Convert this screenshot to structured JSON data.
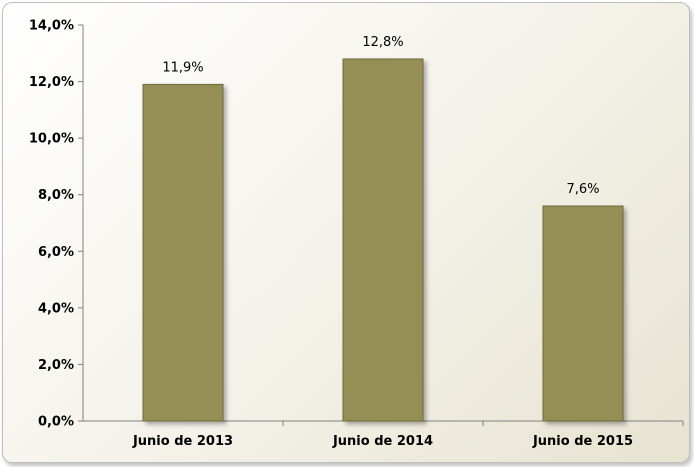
{
  "chart_data": {
    "type": "bar",
    "categories": [
      "Junio de 2013",
      "Junio de 2014",
      "Junio de 2015"
    ],
    "values": [
      11.9,
      12.8,
      7.6
    ],
    "data_labels": [
      "11,9%",
      "12,8%",
      "7,6%"
    ],
    "yticks": [
      0,
      2,
      4,
      6,
      8,
      10,
      12,
      14
    ],
    "ytick_labels": [
      "0,0%",
      "2,0%",
      "4,0%",
      "6,0%",
      "8,0%",
      "10,0%",
      "12,0%",
      "14,0%"
    ],
    "ylim": [
      0,
      14
    ],
    "title": "",
    "xlabel": "",
    "ylabel": "",
    "grid": false,
    "legend": "none",
    "bar_color": "#958f55",
    "bar_edge_color": "#6f6a3c",
    "axis_color": "#808080"
  }
}
